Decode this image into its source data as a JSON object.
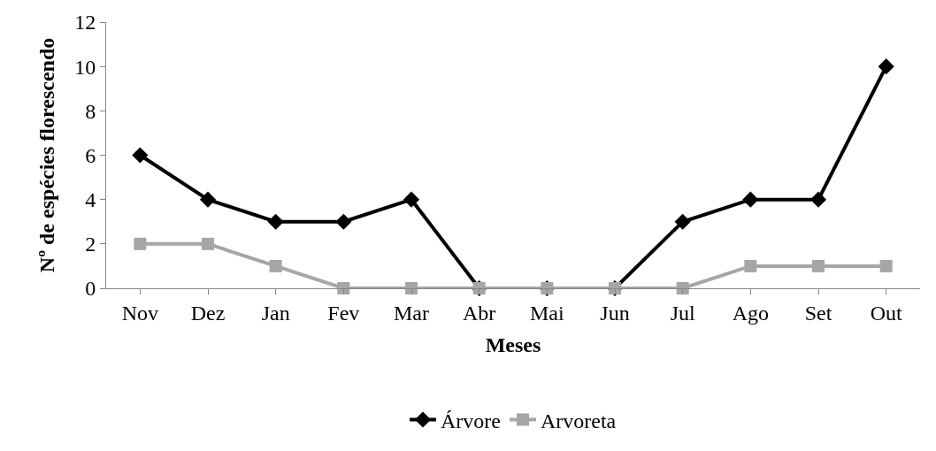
{
  "chart_data": {
    "type": "line",
    "xlabel": "Meses",
    "ylabel": "Nº de espécies florescendo",
    "categories": [
      "Nov",
      "Dez",
      "Jan",
      "Fev",
      "Mar",
      "Abr",
      "Mai",
      "Jun",
      "Jul",
      "Ago",
      "Set",
      "Out"
    ],
    "series": [
      {
        "name": "Árvore",
        "color": "#000000",
        "marker": "diamond",
        "values": [
          6,
          4,
          3,
          3,
          4,
          0,
          0,
          0,
          3,
          4,
          4,
          10
        ]
      },
      {
        "name": "Arvoreta",
        "color": "#a6a6a6",
        "marker": "square",
        "values": [
          2,
          2,
          1,
          0,
          0,
          0,
          0,
          0,
          0,
          1,
          1,
          1
        ]
      }
    ],
    "ylim": [
      0,
      12
    ],
    "yticks": [
      0,
      2,
      4,
      6,
      8,
      10,
      12
    ],
    "legend": "bottom",
    "line_style": "solid"
  }
}
